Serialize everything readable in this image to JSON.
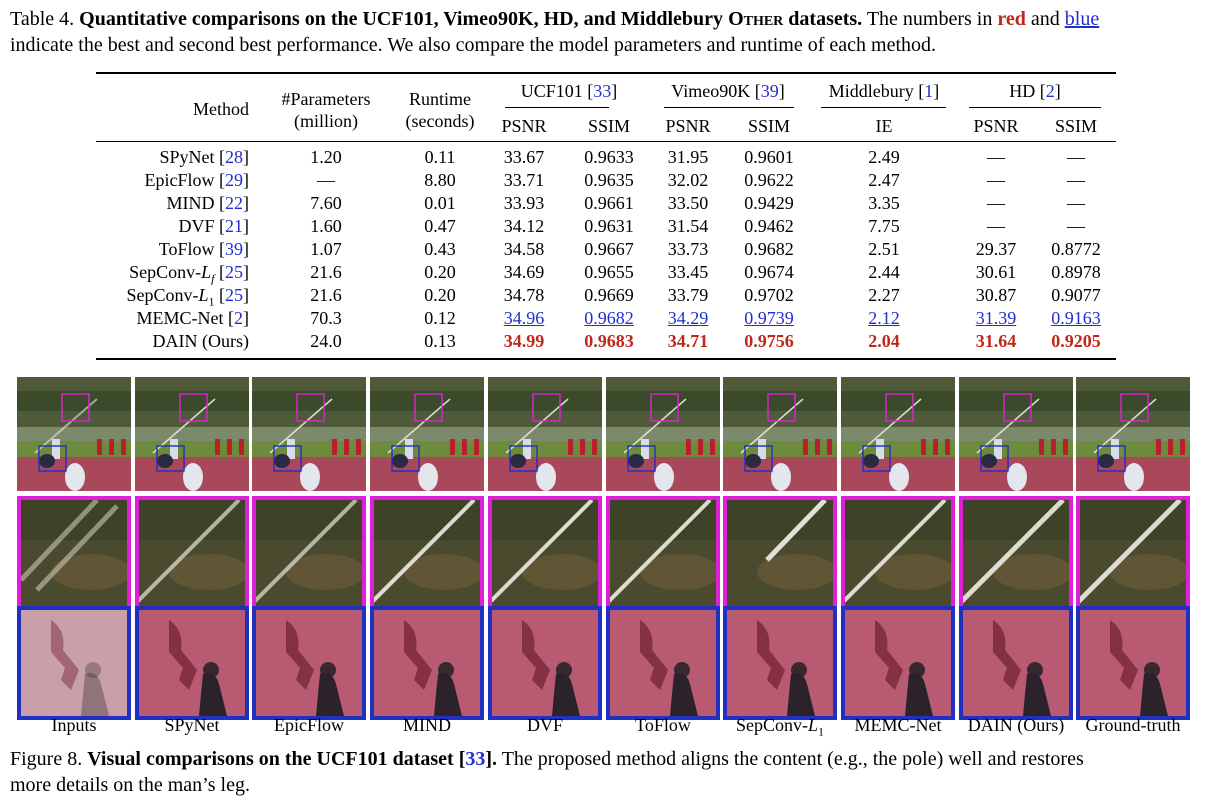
{
  "table_caption": {
    "prefix": "Table 4.",
    "bold": "Quantitative comparisons on the UCF101, Vimeo90K, HD, and Middlebury",
    "bold_sc": "Other",
    "bold_end": "datasets.",
    "t1": "The numbers in",
    "red_word": "red",
    "t2": "and",
    "blue_word": "blue",
    "line2": "indicate the best and second best performance. We also compare the model parameters and runtime of each method."
  },
  "table": {
    "headers": {
      "method": "Method",
      "params1": "#Parameters",
      "params2": "(million)",
      "runtime1": "Runtime",
      "runtime2": "(seconds)",
      "ucf": "UCF101 [",
      "ucf_ref": "33",
      "vimeo": "Vimeo90K [",
      "vimeo_ref": "39",
      "midd": "Middlebury [",
      "midd_ref": "1",
      "hd": "HD [",
      "hd_ref": "2",
      "close": "]",
      "psnr": "PSNR",
      "ssim": "SSIM",
      "ie": "IE"
    },
    "rows": [
      {
        "method": "SPyNet [",
        "ref": "28",
        "params": "1.20",
        "runtime": "0.11",
        "ucf_psnr": "33.67",
        "ucf_ssim": "0.9633",
        "vim_psnr": "31.95",
        "vim_ssim": "0.9601",
        "ie": "2.49",
        "hd_psnr": "—",
        "hd_ssim": "—"
      },
      {
        "method": "EpicFlow [",
        "ref": "29",
        "params": "—",
        "runtime": "8.80",
        "ucf_psnr": "33.71",
        "ucf_ssim": "0.9635",
        "vim_psnr": "32.02",
        "vim_ssim": "0.9622",
        "ie": "2.47",
        "hd_psnr": "—",
        "hd_ssim": "—"
      },
      {
        "method": "MIND [",
        "ref": "22",
        "params": "7.60",
        "runtime": "0.01",
        "ucf_psnr": "33.93",
        "ucf_ssim": "0.9661",
        "vim_psnr": "33.50",
        "vim_ssim": "0.9429",
        "ie": "3.35",
        "hd_psnr": "—",
        "hd_ssim": "—"
      },
      {
        "method": "DVF [",
        "ref": "21",
        "params": "1.60",
        "runtime": "0.47",
        "ucf_psnr": "34.12",
        "ucf_ssim": "0.9631",
        "vim_psnr": "31.54",
        "vim_ssim": "0.9462",
        "ie": "7.75",
        "hd_psnr": "—",
        "hd_ssim": "—"
      },
      {
        "method": "ToFlow [",
        "ref": "39",
        "params": "1.07",
        "runtime": "0.43",
        "ucf_psnr": "34.58",
        "ucf_ssim": "0.9667",
        "vim_psnr": "33.73",
        "vim_ssim": "0.9682",
        "ie": "2.51",
        "hd_psnr": "29.37",
        "hd_ssim": "0.8772"
      },
      {
        "method": "SepConv-",
        "math": "L",
        "sub": "f",
        "ref": "25",
        "params": "21.6",
        "runtime": "0.20",
        "ucf_psnr": "34.69",
        "ucf_ssim": "0.9655",
        "vim_psnr": "33.45",
        "vim_ssim": "0.9674",
        "ie": "2.44",
        "hd_psnr": "30.61",
        "hd_ssim": "0.8978"
      },
      {
        "method": "SepConv-",
        "math": "L",
        "sub": "1",
        "ref": "25",
        "params": "21.6",
        "runtime": "0.20",
        "ucf_psnr": "34.78",
        "ucf_ssim": "0.9669",
        "vim_psnr": "33.79",
        "vim_ssim": "0.9702",
        "ie": "2.27",
        "hd_psnr": "30.87",
        "hd_ssim": "0.9077"
      },
      {
        "method": "MEMC-Net [",
        "ref": "2",
        "params": "70.3",
        "runtime": "0.12",
        "ucf_psnr": "34.96",
        "ucf_ssim": "0.9682",
        "vim_psnr": "34.29",
        "vim_ssim": "0.9739",
        "ie": "2.12",
        "hd_psnr": "31.39",
        "hd_ssim": "0.9163",
        "style": "second"
      },
      {
        "method": "DAIN (Ours)",
        "ref": "",
        "params": "24.0",
        "runtime": "0.13",
        "ucf_psnr": "34.99",
        "ucf_ssim": "0.9683",
        "vim_psnr": "34.71",
        "vim_ssim": "0.9756",
        "ie": "2.04",
        "hd_psnr": "31.64",
        "hd_ssim": "0.9205",
        "style": "best"
      }
    ]
  },
  "figure": {
    "labels": [
      "Inputs",
      "SPyNet",
      "EpicFlow",
      "MIND",
      "DVF",
      "ToFlow",
      "SepConv-",
      "MEMC-Net",
      "DAIN (Ours)",
      "Ground-truth"
    ],
    "sepconv_math": "L",
    "sepconv_sub": "1",
    "border_colors": {
      "top_box": "#e020d8",
      "bottom_box": "#2030c0"
    }
  },
  "figure_caption": {
    "prefix": "Figure 8.",
    "bold": "Visual comparisons on the UCF101 dataset [",
    "ref": "33",
    "bold_end": "].",
    "text": "The proposed method aligns the content (e.g., the pole) well and restores",
    "line2": "more details on the man’s leg."
  }
}
